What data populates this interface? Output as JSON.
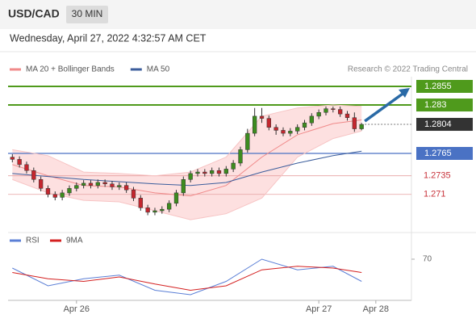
{
  "chart_data": {
    "type": "candlestick",
    "title": "USD/CAD",
    "timeframe": "30 MIN",
    "subtitle": "Wednesday, April 27, 2022 4:32:57 AM CET",
    "source": "Research © 2022 Trading Central",
    "xlim": [
      -0.6,
      56
    ],
    "xticks": [
      {
        "value": 9,
        "label": "Apr 26"
      },
      {
        "value": 43,
        "label": "Apr 27"
      },
      {
        "value": 51,
        "label": "Apr 28"
      }
    ],
    "ylim": [
      1.2662,
      1.2868
    ],
    "up_color": "#3d8c1f",
    "down_color": "#c4262e",
    "candles": {
      "open": [
        1.276,
        1.2757,
        1.275,
        1.2742,
        1.273,
        1.2718,
        1.271,
        1.2706,
        1.2712,
        1.2718,
        1.2722,
        1.2725,
        1.2722,
        1.2726,
        1.2724,
        1.272,
        1.2722,
        1.2716,
        1.2705,
        1.2692,
        1.2686,
        1.2688,
        1.269,
        1.2698,
        1.2712,
        1.273,
        1.2738,
        1.274,
        1.2738,
        1.2742,
        1.2738,
        1.2744,
        1.2752,
        1.277,
        1.2792,
        1.2815,
        1.2812,
        1.28,
        1.2796,
        1.2792,
        1.2795,
        1.28,
        1.2806,
        1.2815,
        1.282,
        1.2825,
        1.2824,
        1.2818,
        1.2813,
        1.2798
      ],
      "high": [
        1.2764,
        1.2761,
        1.2754,
        1.2746,
        1.2734,
        1.2722,
        1.2714,
        1.2716,
        1.2722,
        1.2726,
        1.2729,
        1.2729,
        1.273,
        1.273,
        1.2728,
        1.2726,
        1.2726,
        1.272,
        1.2709,
        1.2696,
        1.2692,
        1.2694,
        1.2702,
        1.2716,
        1.2734,
        1.2742,
        1.2744,
        1.2744,
        1.2746,
        1.2746,
        1.2748,
        1.2756,
        1.2774,
        1.2798,
        1.2826,
        1.2826,
        1.2816,
        1.2804,
        1.28,
        1.2799,
        1.2804,
        1.281,
        1.2819,
        1.2824,
        1.2828,
        1.2828,
        1.2828,
        1.2822,
        1.282,
        1.2806
      ],
      "low": [
        1.2753,
        1.2746,
        1.2738,
        1.2726,
        1.2714,
        1.2706,
        1.2702,
        1.2702,
        1.2708,
        1.2714,
        1.2718,
        1.2718,
        1.2718,
        1.272,
        1.2716,
        1.2716,
        1.2712,
        1.2701,
        1.2688,
        1.2682,
        1.2682,
        1.2684,
        1.2686,
        1.2694,
        1.2708,
        1.2726,
        1.2734,
        1.2734,
        1.2734,
        1.2734,
        1.2734,
        1.274,
        1.2748,
        1.2766,
        1.2788,
        1.2806,
        1.2796,
        1.279,
        1.2788,
        1.2788,
        1.2791,
        1.2796,
        1.2802,
        1.2811,
        1.2816,
        1.282,
        1.2814,
        1.2809,
        1.2794,
        1.2796
      ],
      "close": [
        1.2757,
        1.275,
        1.2742,
        1.273,
        1.2718,
        1.271,
        1.2706,
        1.2712,
        1.2718,
        1.2722,
        1.2725,
        1.2722,
        1.2726,
        1.2724,
        1.272,
        1.2722,
        1.2716,
        1.2705,
        1.2692,
        1.2686,
        1.2688,
        1.269,
        1.2698,
        1.2712,
        1.273,
        1.2738,
        1.274,
        1.2738,
        1.2742,
        1.2738,
        1.2744,
        1.2752,
        1.277,
        1.2792,
        1.2815,
        1.2812,
        1.28,
        1.2796,
        1.2792,
        1.2795,
        1.28,
        1.2806,
        1.2815,
        1.282,
        1.2825,
        1.2824,
        1.2818,
        1.2813,
        1.2798,
        1.2804
      ]
    },
    "indicators": {
      "x": [
        0,
        5,
        10,
        15,
        20,
        25,
        30,
        35,
        40,
        45,
        49
      ],
      "series": [
        {
          "name": "MA 20 + Bollinger Bands",
          "color": "#f08a8a",
          "band_color": "#fde0e0",
          "values": [
            1.275,
            1.2735,
            1.2722,
            1.272,
            1.2712,
            1.2708,
            1.2722,
            1.276,
            1.279,
            1.2805,
            1.281
          ],
          "upper": [
            1.277,
            1.2762,
            1.274,
            1.2738,
            1.2735,
            1.274,
            1.276,
            1.2815,
            1.2826,
            1.283,
            1.2828
          ],
          "lower": [
            1.273,
            1.2712,
            1.2702,
            1.27,
            1.2688,
            1.2676,
            1.2684,
            1.2705,
            1.276,
            1.2785,
            1.2795
          ]
        },
        {
          "name": "MA 50",
          "color": "#3b5d9c",
          "values": [
            1.2738,
            1.2734,
            1.273,
            1.2727,
            1.2724,
            1.2722,
            1.2726,
            1.274,
            1.2752,
            1.2762,
            1.2768
          ]
        }
      ]
    },
    "levels": [
      {
        "value": 1.2855,
        "color": "#4f9a1c",
        "style": "resistance"
      },
      {
        "value": 1.283,
        "color": "#4f9a1c",
        "style": "resistance"
      },
      {
        "value": 1.2804,
        "color": "#333333",
        "style": "current"
      },
      {
        "value": 1.2765,
        "color": "#4a72c4",
        "style": "pivot"
      },
      {
        "value": 1.2735,
        "color": "#c8323a",
        "style": "support"
      },
      {
        "value": 1.271,
        "color": "#c8323a",
        "style": "support"
      }
    ],
    "rsi": {
      "ylim": [
        20,
        80
      ],
      "yticks": [
        70
      ],
      "x": [
        0,
        5,
        10,
        15,
        20,
        25,
        30,
        35,
        40,
        45,
        49
      ],
      "series": [
        {
          "name": "RSI",
          "color": "#5b7fd6",
          "values": [
            60,
            40,
            48,
            52,
            35,
            30,
            45,
            70,
            58,
            62,
            45
          ]
        },
        {
          "name": "9MA",
          "color": "#d42020",
          "values": [
            55,
            48,
            45,
            50,
            42,
            35,
            40,
            58,
            62,
            60,
            55
          ]
        }
      ]
    }
  }
}
